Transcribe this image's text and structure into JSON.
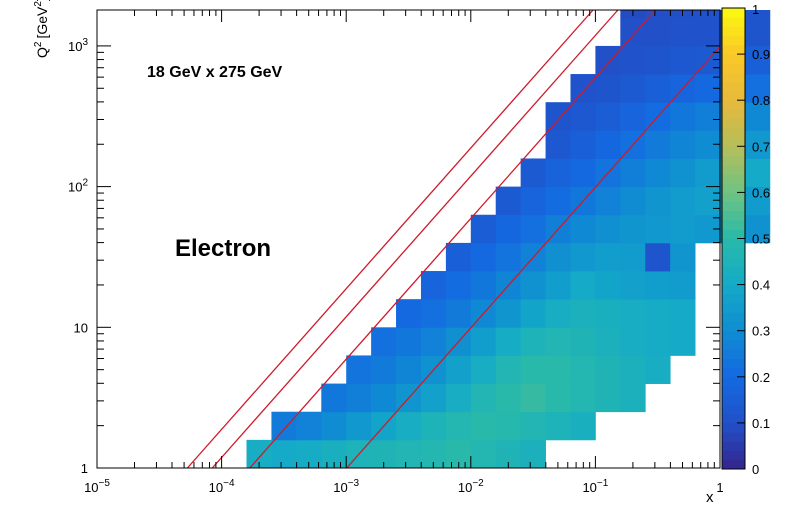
{
  "chart_data": {
    "type": "heatmap",
    "title": "",
    "xlabel": "x",
    "ylabel": "Q² [GeV²]",
    "ylabel_main": "Q",
    "ylabel_sup": "2",
    "ylabel_unit": "[GeV",
    "ylabel_unit_sup": "2",
    "ylabel_close": "]",
    "xscale": "log",
    "yscale": "log",
    "xlim": [
      1e-05,
      1
    ],
    "ylim": [
      1,
      1800
    ],
    "zlim": [
      0,
      1
    ],
    "x_tick_labels": [
      {
        "base": "10",
        "exp": "−5",
        "value": 1e-05
      },
      {
        "base": "10",
        "exp": "−4",
        "value": 0.0001
      },
      {
        "base": "10",
        "exp": "−3",
        "value": 0.001
      },
      {
        "base": "10",
        "exp": "−2",
        "value": 0.01
      },
      {
        "base": "10",
        "exp": "−1",
        "value": 0.1
      },
      {
        "base": "1",
        "exp": "",
        "value": 1
      }
    ],
    "y_tick_labels": [
      {
        "base": "1",
        "exp": "",
        "value": 1
      },
      {
        "base": "10",
        "exp": "",
        "value": 10
      },
      {
        "base": "10",
        "exp": "2",
        "value": 100
      },
      {
        "base": "10",
        "exp": "3",
        "value": 1000
      }
    ],
    "colorbar_ticks": [
      "0",
      "0.1",
      "0.2",
      "0.3",
      "0.4",
      "0.5",
      "0.6",
      "0.7",
      "0.8",
      "0.9",
      "1"
    ],
    "annotations": {
      "beam_energies": "18 GeV x 275 GeV",
      "particle": "Electron"
    },
    "y_lines": [
      0.95,
      0.6,
      0.3,
      0.05
    ],
    "bins_per_decade": 5,
    "rows": [
      {
        "y_bin": 0,
        "start_col": 6,
        "values": [
          0.42,
          0.4,
          0.41,
          0.43,
          0.45,
          0.46,
          0.47,
          0.48,
          0.5,
          0.48,
          0.46,
          0.44
        ]
      },
      {
        "y_bin": 1,
        "start_col": 7,
        "values": [
          0.25,
          0.27,
          0.3,
          0.34,
          0.38,
          0.42,
          0.45,
          0.48,
          0.5,
          0.49,
          0.47,
          0.45,
          0.43
        ]
      },
      {
        "y_bin": 2,
        "start_col": 9,
        "values": [
          0.24,
          0.26,
          0.29,
          0.33,
          0.37,
          0.42,
          0.47,
          0.5,
          0.52,
          0.5,
          0.48,
          0.46,
          0.44
        ]
      },
      {
        "y_bin": 3,
        "start_col": 10,
        "values": [
          0.23,
          0.25,
          0.28,
          0.32,
          0.37,
          0.42,
          0.47,
          0.5,
          0.5,
          0.48,
          0.46,
          0.44,
          0.42
        ]
      },
      {
        "y_bin": 4,
        "start_col": 11,
        "values": [
          0.22,
          0.24,
          0.27,
          0.31,
          0.36,
          0.41,
          0.45,
          0.47,
          0.46,
          0.44,
          0.42,
          0.41,
          0.4
        ]
      },
      {
        "y_bin": 5,
        "start_col": 12,
        "values": [
          0.2,
          0.22,
          0.25,
          0.29,
          0.33,
          0.38,
          0.42,
          0.44,
          0.43,
          0.42,
          0.41,
          0.4
        ]
      },
      {
        "y_bin": 6,
        "start_col": 13,
        "values": [
          0.18,
          0.21,
          0.24,
          0.28,
          0.32,
          0.36,
          0.4,
          0.38,
          0.37,
          0.36,
          0.35
        ]
      },
      {
        "y_bin": 7,
        "start_col": 14,
        "values": [
          0.16,
          0.2,
          0.23,
          0.27,
          0.31,
          0.34,
          0.36,
          0.35,
          0.12,
          0.33
        ]
      },
      {
        "y_bin": 8,
        "start_col": 15,
        "values": [
          0.15,
          0.19,
          0.22,
          0.26,
          0.29,
          0.31,
          0.33,
          0.34,
          0.35,
          0.34,
          0.33,
          0.32
        ]
      },
      {
        "y_bin": 9,
        "start_col": 16,
        "values": [
          0.14,
          0.18,
          0.21,
          0.24,
          0.27,
          0.3,
          0.33,
          0.35,
          0.37,
          0.36,
          0.35
        ]
      },
      {
        "y_bin": 10,
        "start_col": 17,
        "values": [
          0.14,
          0.17,
          0.2,
          0.23,
          0.26,
          0.29,
          0.32,
          0.35,
          0.38,
          0.4
        ]
      },
      {
        "y_bin": 11,
        "start_col": 18,
        "values": [
          0.13,
          0.16,
          0.19,
          0.22,
          0.25,
          0.28,
          0.3,
          0.32,
          0.34
        ]
      },
      {
        "y_bin": 12,
        "start_col": 18,
        "values": [
          0.12,
          0.13,
          0.15,
          0.18,
          0.21,
          0.24,
          0.26,
          0.28,
          0.29
        ]
      },
      {
        "y_bin": 13,
        "start_col": 19,
        "values": [
          0.11,
          0.12,
          0.14,
          0.16,
          0.18,
          0.2,
          0.21,
          0.22
        ]
      },
      {
        "y_bin": 14,
        "start_col": 20,
        "values": [
          0.1,
          0.11,
          0.12,
          0.13,
          0.14,
          0.15,
          0.16
        ]
      },
      {
        "y_bin": 15,
        "start_col": 21,
        "values": [
          0.1,
          0.1,
          0.11,
          0.11,
          0.12,
          0.12
        ]
      },
      {
        "y_bin": 16,
        "start_col": 21,
        "values": [
          0.09,
          0.1,
          0.1,
          0.11,
          0.11,
          0.12
        ]
      }
    ]
  }
}
